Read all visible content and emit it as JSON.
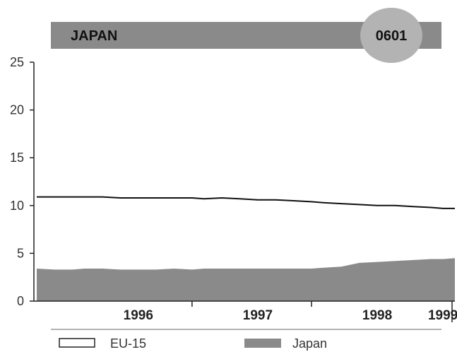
{
  "header": {
    "title": "JAPAN",
    "badge": "0601",
    "bar_color": "#8a8a8a",
    "badge_color": "#b3b3b3"
  },
  "chart_data": {
    "type": "area",
    "x": [
      1995.6,
      1995.75,
      1995.9,
      1996.0,
      1996.15,
      1996.3,
      1996.45,
      1996.6,
      1996.75,
      1996.9,
      1997.0,
      1997.15,
      1997.3,
      1997.45,
      1997.6,
      1997.75,
      1997.9,
      1998.0,
      1998.15,
      1998.3,
      1998.45,
      1998.6,
      1998.75,
      1998.9,
      1999.0,
      1999.1
    ],
    "xticks": [
      "1996",
      "1997",
      "1998",
      "1999"
    ],
    "ylim": [
      0,
      25
    ],
    "yticks": [
      0,
      5,
      10,
      15,
      20,
      25
    ],
    "series": [
      {
        "name": "EU-15",
        "type": "line",
        "color": "#111111",
        "values": [
          10.9,
          10.9,
          10.9,
          10.9,
          10.9,
          10.8,
          10.8,
          10.8,
          10.8,
          10.8,
          10.7,
          10.8,
          10.7,
          10.6,
          10.6,
          10.5,
          10.4,
          10.3,
          10.2,
          10.1,
          10.0,
          10.0,
          9.9,
          9.8,
          9.7,
          9.7
        ]
      },
      {
        "name": "Japan",
        "type": "area",
        "color": "#8a8a8a",
        "values": [
          3.4,
          3.3,
          3.3,
          3.4,
          3.4,
          3.3,
          3.3,
          3.3,
          3.4,
          3.3,
          3.4,
          3.4,
          3.4,
          3.4,
          3.4,
          3.4,
          3.4,
          3.5,
          3.6,
          4.0,
          4.1,
          4.2,
          4.3,
          4.4,
          4.4,
          4.5
        ]
      }
    ],
    "legend": [
      {
        "label": "EU-15",
        "style": "outline"
      },
      {
        "label": "Japan",
        "style": "filled"
      }
    ],
    "legend_position": "bottom",
    "grid": false
  }
}
